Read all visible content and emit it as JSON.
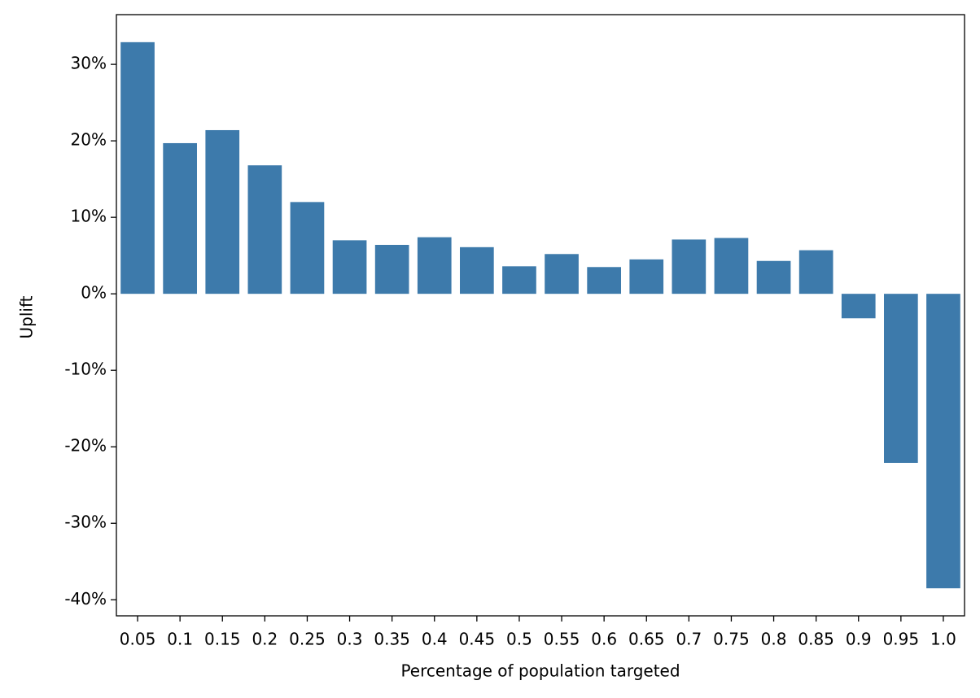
{
  "chart_data": {
    "type": "bar",
    "xlabel": "Percentage of population targeted",
    "ylabel": "Uplift",
    "categories": [
      "0.05",
      "0.1",
      "0.15",
      "0.2",
      "0.25",
      "0.3",
      "0.35",
      "0.4",
      "0.45",
      "0.5",
      "0.55",
      "0.6",
      "0.65",
      "0.7",
      "0.75",
      "0.8",
      "0.85",
      "0.9",
      "0.95",
      "1.0"
    ],
    "values": [
      32.9,
      19.7,
      21.4,
      16.8,
      12.0,
      7.0,
      6.4,
      7.4,
      6.1,
      3.6,
      5.2,
      3.5,
      4.5,
      7.1,
      7.3,
      4.3,
      5.7,
      -3.2,
      -22.1,
      -38.5
    ],
    "color": "#3d7aab",
    "ylim": [
      -42.1,
      36.5
    ],
    "yticks": [
      {
        "value": -40,
        "label": "-40%"
      },
      {
        "value": -30,
        "label": "-30%"
      },
      {
        "value": -20,
        "label": "-20%"
      },
      {
        "value": -10,
        "label": "-10%"
      },
      {
        "value": 0,
        "label": "0%"
      },
      {
        "value": 10,
        "label": "10%"
      },
      {
        "value": 20,
        "label": "20%"
      },
      {
        "value": 30,
        "label": "30%"
      }
    ],
    "grid": false
  }
}
